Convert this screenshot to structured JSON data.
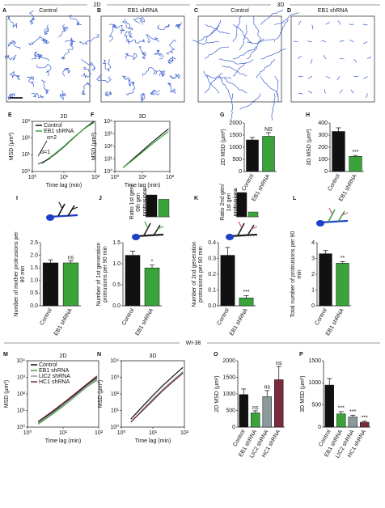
{
  "headers": [
    "2D",
    "3D"
  ],
  "images": [
    {
      "panel": "A",
      "title": "Control"
    },
    {
      "panel": "B",
      "title": "EB1 shRNA"
    },
    {
      "panel": "C",
      "title": "Control"
    },
    {
      "panel": "D",
      "title": "EB1 shRNA"
    }
  ],
  "section": "WI-38",
  "chart_data": [
    {
      "panel": "E",
      "type": "line",
      "title": "2D",
      "xlabel": "Time lag (min)",
      "ylabel": "MSD (μm²)",
      "log_x": true,
      "log_y": true,
      "xlim": [
        1,
        100
      ],
      "ylim": [
        1,
        1000
      ],
      "xticks": [
        {
          "value": 1,
          "label": "10⁰"
        },
        {
          "value": 10,
          "label": "10¹"
        },
        {
          "value": 100,
          "label": "10²"
        }
      ],
      "yticks": [
        {
          "value": 1,
          "label": "10⁰"
        },
        {
          "value": 10,
          "label": "10¹"
        },
        {
          "value": 100,
          "label": "10²"
        },
        {
          "value": 1000,
          "label": "10³"
        }
      ],
      "x": [
        2,
        5,
        10,
        20,
        50,
        90
      ],
      "series": [
        {
          "name": "Control",
          "color": "#111111",
          "values": [
            3,
            10,
            30,
            100,
            450,
            1000
          ]
        },
        {
          "name": "EB1 shRNA",
          "color": "#3aa43a",
          "values": [
            3,
            11,
            32,
            105,
            430,
            850
          ]
        }
      ],
      "annotations": [
        "α=2",
        "α=1"
      ],
      "legend": "upper left"
    },
    {
      "panel": "F",
      "type": "line",
      "title": "3D",
      "xlabel": "Time lag (min)",
      "ylabel": "MSD (μm²)",
      "log_x": true,
      "log_y": true,
      "xlim": [
        1,
        100
      ],
      "ylim": [
        1,
        10000
      ],
      "xticks": [
        {
          "value": 1,
          "label": "10⁰"
        },
        {
          "value": 10,
          "label": "10¹"
        },
        {
          "value": 100,
          "label": "10²"
        }
      ],
      "yticks": [
        {
          "value": 1,
          "label": "10⁰"
        },
        {
          "value": 10,
          "label": "10¹"
        },
        {
          "value": 100,
          "label": "10²"
        },
        {
          "value": 1000,
          "label": "10³"
        },
        {
          "value": 10000,
          "label": "10⁴"
        }
      ],
      "x": [
        2,
        5,
        10,
        20,
        50,
        90
      ],
      "series": [
        {
          "name": "Control",
          "color": "#111111",
          "values": [
            2,
            12,
            45,
            170,
            900,
            2500
          ]
        },
        {
          "name": "EB1 shRNA",
          "color": "#3aa43a",
          "values": [
            2,
            10,
            35,
            120,
            600,
            1500
          ]
        }
      ]
    },
    {
      "panel": "G",
      "type": "bar",
      "ylabel": "2D MSD (μm²)",
      "categories": [
        "Control",
        "EB1 shRNA"
      ],
      "values": [
        1300,
        1450
      ],
      "errors": [
        100,
        150
      ],
      "colors": [
        "#111111",
        "#3aa43a"
      ],
      "ylim": [
        0,
        2000
      ],
      "yticks": [
        0,
        500,
        1000,
        1500,
        2000
      ],
      "significance": [
        null,
        "NS"
      ]
    },
    {
      "panel": "H",
      "type": "bar",
      "ylabel": "3D MSD (μm²)",
      "categories": [
        "Control",
        "EB1 shRNA"
      ],
      "values": [
        330,
        125
      ],
      "errors": [
        30,
        8
      ],
      "colors": [
        "#111111",
        "#3aa43a"
      ],
      "ylim": [
        0,
        400
      ],
      "yticks": [
        0,
        100,
        200,
        300,
        400
      ],
      "significance": [
        null,
        "***"
      ]
    },
    {
      "panel": "I",
      "type": "bar",
      "ylabel": "Number of mother protrusions per 90 min",
      "categories": [
        "Control",
        "EB1 shRNA"
      ],
      "values": [
        1.7,
        1.7
      ],
      "errors": [
        0.12,
        0.08
      ],
      "colors": [
        "#111111",
        "#3aa43a"
      ],
      "ylim": [
        0,
        2.5
      ],
      "yticks": [
        {
          "value": 0,
          "label": "0.0"
        },
        0.5,
        {
          "value": 1,
          "label": "1.0"
        },
        1.5,
        {
          "value": 2,
          "label": "2.0"
        },
        2.5
      ],
      "significance": [
        null,
        "ns"
      ]
    },
    {
      "panel": "J",
      "type": "bar",
      "ylabel": "Number of 1st generation protrusions per 90 min",
      "categories": [
        "Control",
        "EB1 shRNA"
      ],
      "values": [
        1.2,
        0.9
      ],
      "errors": [
        0.1,
        0.07
      ],
      "colors": [
        "#111111",
        "#3aa43a"
      ],
      "ylim": [
        0,
        1.5
      ],
      "yticks": [
        {
          "value": 0,
          "label": "0.0"
        },
        0.5,
        {
          "value": 1,
          "label": "1.0"
        },
        1.5
      ],
      "significance": [
        null,
        "*"
      ],
      "inset": {
        "ylabel": "Ratio 1st gen/ 0th gen protrusions",
        "values": [
          0.75,
          0.6
        ],
        "ylim": [
          0,
          1
        ]
      }
    },
    {
      "panel": "K",
      "type": "bar",
      "ylabel": "Number of 2nd generation protrusions per 90 min",
      "categories": [
        "Control",
        "EB1 shRNA"
      ],
      "values": [
        0.32,
        0.05
      ],
      "errors": [
        0.05,
        0.015
      ],
      "colors": [
        "#111111",
        "#3aa43a"
      ],
      "ylim": [
        0,
        0.4
      ],
      "yticks": [
        {
          "value": 0,
          "label": "0.0"
        },
        0.1,
        0.2,
        0.3,
        0.4
      ],
      "significance": [
        null,
        "***"
      ],
      "inset": {
        "ylabel": "Ratio 2nd gen/ 1st gen protrusions",
        "values": [
          0.25,
          0.05
        ],
        "ylim": [
          0,
          0.3
        ]
      }
    },
    {
      "panel": "L",
      "type": "bar",
      "ylabel": "Total number of protrusions per 90 min",
      "categories": [
        "Control",
        "EB1 shRNA"
      ],
      "values": [
        3.3,
        2.7
      ],
      "errors": [
        0.2,
        0.1
      ],
      "colors": [
        "#111111",
        "#3aa43a"
      ],
      "ylim": [
        0,
        4
      ],
      "yticks": [
        0,
        1,
        2,
        3,
        4
      ],
      "significance": [
        null,
        "**"
      ]
    },
    {
      "panel": "M",
      "type": "line",
      "title": "2D",
      "xlabel": "Time lag (min)",
      "ylabel": "MSD (μm²)",
      "log_x": true,
      "log_y": true,
      "xlim": [
        1,
        100
      ],
      "ylim": [
        1,
        10000
      ],
      "xticks": [
        {
          "value": 1,
          "label": "10⁰"
        },
        {
          "value": 10,
          "label": "10¹"
        },
        {
          "value": 100,
          "label": "10²"
        }
      ],
      "yticks": [
        {
          "value": 1,
          "label": "10⁰"
        },
        {
          "value": 10,
          "label": "10¹"
        },
        {
          "value": 100,
          "label": "10²"
        },
        {
          "value": 1000,
          "label": "10³"
        },
        {
          "value": 10000,
          "label": "10⁴"
        }
      ],
      "x": [
        2,
        5,
        10,
        20,
        50,
        90
      ],
      "series": [
        {
          "name": "Control",
          "color": "#111111",
          "values": [
            2,
            8,
            25,
            80,
            400,
            1000
          ]
        },
        {
          "name": "EB1 shRNA",
          "color": "#3aa43a",
          "values": [
            1.5,
            6,
            18,
            60,
            300,
            700
          ]
        },
        {
          "name": "LIC2 shRNA",
          "color": "#8a9a9a",
          "values": [
            1.8,
            7,
            20,
            65,
            320,
            800
          ]
        },
        {
          "name": "HC1 shRNA",
          "color": "#7a2a3a",
          "values": [
            2.2,
            9,
            28,
            90,
            450,
            1200
          ]
        }
      ],
      "legend": "upper left"
    },
    {
      "panel": "N",
      "type": "line",
      "title": "3D",
      "xlabel": "Time lag (min)",
      "ylabel": "MSD (μm²)",
      "log_x": true,
      "log_y": true,
      "xlim": [
        1,
        100
      ],
      "ylim": [
        1,
        10000
      ],
      "xticks": [
        {
          "value": 1,
          "label": "10⁰"
        },
        {
          "value": 10,
          "label": "10¹"
        },
        {
          "value": 100,
          "label": "10²"
        }
      ],
      "yticks": [
        {
          "value": 1,
          "label": "10⁰"
        },
        {
          "value": 10,
          "label": "10¹"
        },
        {
          "value": 100,
          "label": "10²"
        },
        {
          "value": 1000,
          "label": "10³"
        },
        {
          "value": 10000,
          "label": "10⁴"
        }
      ],
      "x": [
        2,
        5,
        10,
        20,
        50,
        90
      ],
      "series": [
        {
          "name": "Control",
          "color": "#111111",
          "values": [
            3,
            20,
            80,
            300,
            1500,
            4000
          ]
        },
        {
          "name": "EB1 shRNA",
          "color": "#3aa43a",
          "values": [
            2,
            12,
            45,
            170,
            800,
            2000
          ]
        },
        {
          "name": "LIC2 shRNA",
          "color": "#8a9a9a",
          "values": [
            2,
            13,
            50,
            180,
            850,
            2200
          ]
        },
        {
          "name": "HC1 shRNA",
          "color": "#7a2a3a",
          "values": [
            2,
            11,
            40,
            150,
            700,
            1800
          ]
        }
      ]
    },
    {
      "panel": "O",
      "type": "bar",
      "ylabel": "2D MSD (μm²)",
      "categories": [
        "Control",
        "EB1 shRNA",
        "LIC2 shRNA",
        "HC1 shRNA"
      ],
      "values": [
        980,
        430,
        920,
        1430
      ],
      "errors": [
        170,
        60,
        180,
        400
      ],
      "colors": [
        "#111111",
        "#3aa43a",
        "#8a9a9a",
        "#7a2a3a"
      ],
      "ylim": [
        0,
        2000
      ],
      "yticks": [
        0,
        500,
        1000,
        1500,
        2000
      ],
      "significance": [
        null,
        "ns",
        "ns",
        "ns"
      ]
    },
    {
      "panel": "P",
      "type": "bar",
      "ylabel": "3D MSD (μm²)",
      "categories": [
        "Control",
        "EB1 shRNA",
        "LIC2 shRNA",
        "HC1 shRNA"
      ],
      "values": [
        950,
        300,
        230,
        110
      ],
      "errors": [
        150,
        50,
        40,
        25
      ],
      "colors": [
        "#111111",
        "#3aa43a",
        "#8a9a9a",
        "#7a2a3a"
      ],
      "ylim": [
        0,
        1500
      ],
      "yticks": [
        0,
        500,
        1000,
        1500
      ],
      "significance": [
        null,
        "***",
        "***",
        "***"
      ]
    }
  ]
}
